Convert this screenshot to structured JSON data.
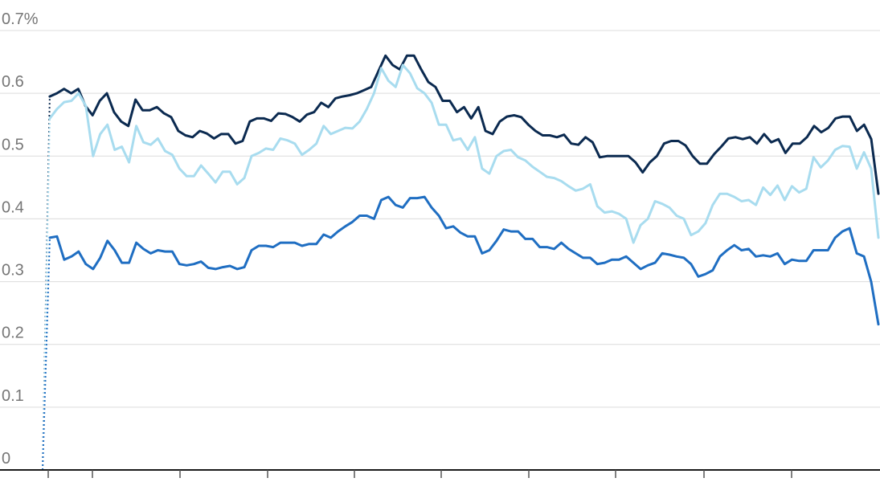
{
  "chart_data": {
    "type": "line",
    "title": "",
    "xlabel": "",
    "ylabel": "",
    "ylim": [
      0,
      0.7
    ],
    "y_ticks": [
      "0",
      "0.1",
      "0.2",
      "0.3",
      "0.4",
      "0.5",
      "0.6",
      "0.7%"
    ],
    "y_tick_values": [
      0,
      0.1,
      0.2,
      0.3,
      0.4,
      0.5,
      0.6,
      0.7
    ],
    "x_tick_count": 10,
    "grid": true,
    "legend": "none",
    "series": [
      {
        "color": "#0b2a50",
        "values": [
          0,
          0.595,
          0.6,
          0.607,
          0.6,
          0.607,
          0.58,
          0.565,
          0.588,
          0.6,
          0.57,
          0.555,
          0.548,
          0.59,
          0.573,
          0.573,
          0.578,
          0.568,
          0.562,
          0.54,
          0.533,
          0.53,
          0.54,
          0.536,
          0.528,
          0.535,
          0.535,
          0.52,
          0.524,
          0.555,
          0.56,
          0.56,
          0.556,
          0.568,
          0.567,
          0.562,
          0.555,
          0.566,
          0.57,
          0.585,
          0.578,
          0.592,
          0.595,
          0.597,
          0.6,
          0.605,
          0.61,
          0.635,
          0.66,
          0.645,
          0.638,
          0.66,
          0.66,
          0.638,
          0.618,
          0.61,
          0.588,
          0.588,
          0.57,
          0.578,
          0.56,
          0.578,
          0.54,
          0.535,
          0.555,
          0.563,
          0.565,
          0.562,
          0.55,
          0.54,
          0.533,
          0.533,
          0.53,
          0.534,
          0.52,
          0.518,
          0.53,
          0.522,
          0.498,
          0.5,
          0.5,
          0.5,
          0.5,
          0.49,
          0.474,
          0.49,
          0.5,
          0.52,
          0.524,
          0.524,
          0.517,
          0.5,
          0.488,
          0.488,
          0.503,
          0.515,
          0.528,
          0.53,
          0.527,
          0.53,
          0.52,
          0.535,
          0.522,
          0.527,
          0.505,
          0.52,
          0.52,
          0.53,
          0.548,
          0.538,
          0.545,
          0.56,
          0.563,
          0.563,
          0.54,
          0.55,
          0.527,
          0.44
        ]
      },
      {
        "color": "#a8dcef",
        "values": [
          0,
          0.56,
          0.575,
          0.586,
          0.588,
          0.6,
          0.58,
          0.5,
          0.535,
          0.55,
          0.51,
          0.515,
          0.49,
          0.548,
          0.522,
          0.518,
          0.528,
          0.508,
          0.502,
          0.48,
          0.468,
          0.468,
          0.485,
          0.472,
          0.458,
          0.475,
          0.475,
          0.455,
          0.465,
          0.5,
          0.505,
          0.512,
          0.51,
          0.528,
          0.525,
          0.52,
          0.502,
          0.51,
          0.52,
          0.548,
          0.535,
          0.54,
          0.545,
          0.544,
          0.555,
          0.575,
          0.6,
          0.64,
          0.62,
          0.61,
          0.645,
          0.632,
          0.608,
          0.6,
          0.585,
          0.55,
          0.55,
          0.525,
          0.528,
          0.51,
          0.53,
          0.48,
          0.472,
          0.5,
          0.508,
          0.51,
          0.498,
          0.493,
          0.483,
          0.475,
          0.467,
          0.465,
          0.46,
          0.452,
          0.445,
          0.448,
          0.455,
          0.42,
          0.41,
          0.412,
          0.408,
          0.4,
          0.362,
          0.39,
          0.4,
          0.428,
          0.424,
          0.418,
          0.405,
          0.4,
          0.374,
          0.38,
          0.393,
          0.422,
          0.44,
          0.44,
          0.435,
          0.428,
          0.43,
          0.422,
          0.45,
          0.438,
          0.453,
          0.43,
          0.452,
          0.442,
          0.448,
          0.498,
          0.482,
          0.493,
          0.51,
          0.516,
          0.515,
          0.48,
          0.506,
          0.48,
          0.37
        ]
      },
      {
        "color": "#1f6ec2",
        "values": [
          0,
          0.37,
          0.372,
          0.335,
          0.34,
          0.348,
          0.328,
          0.32,
          0.338,
          0.365,
          0.35,
          0.33,
          0.33,
          0.362,
          0.352,
          0.345,
          0.35,
          0.348,
          0.348,
          0.328,
          0.326,
          0.328,
          0.332,
          0.322,
          0.32,
          0.323,
          0.325,
          0.32,
          0.323,
          0.35,
          0.357,
          0.357,
          0.355,
          0.362,
          0.362,
          0.362,
          0.357,
          0.36,
          0.36,
          0.375,
          0.37,
          0.38,
          0.388,
          0.395,
          0.405,
          0.405,
          0.4,
          0.43,
          0.435,
          0.422,
          0.418,
          0.433,
          0.433,
          0.435,
          0.418,
          0.405,
          0.385,
          0.388,
          0.378,
          0.372,
          0.372,
          0.345,
          0.35,
          0.365,
          0.383,
          0.38,
          0.38,
          0.368,
          0.368,
          0.355,
          0.355,
          0.352,
          0.362,
          0.352,
          0.345,
          0.338,
          0.338,
          0.328,
          0.33,
          0.335,
          0.335,
          0.34,
          0.33,
          0.32,
          0.326,
          0.33,
          0.345,
          0.343,
          0.34,
          0.338,
          0.328,
          0.308,
          0.312,
          0.318,
          0.34,
          0.35,
          0.358,
          0.35,
          0.352,
          0.34,
          0.342,
          0.34,
          0.345,
          0.328,
          0.335,
          0.333,
          0.333,
          0.35,
          0.35,
          0.35,
          0.37,
          0.38,
          0.385,
          0.345,
          0.34,
          0.3,
          0.232
        ]
      }
    ]
  }
}
